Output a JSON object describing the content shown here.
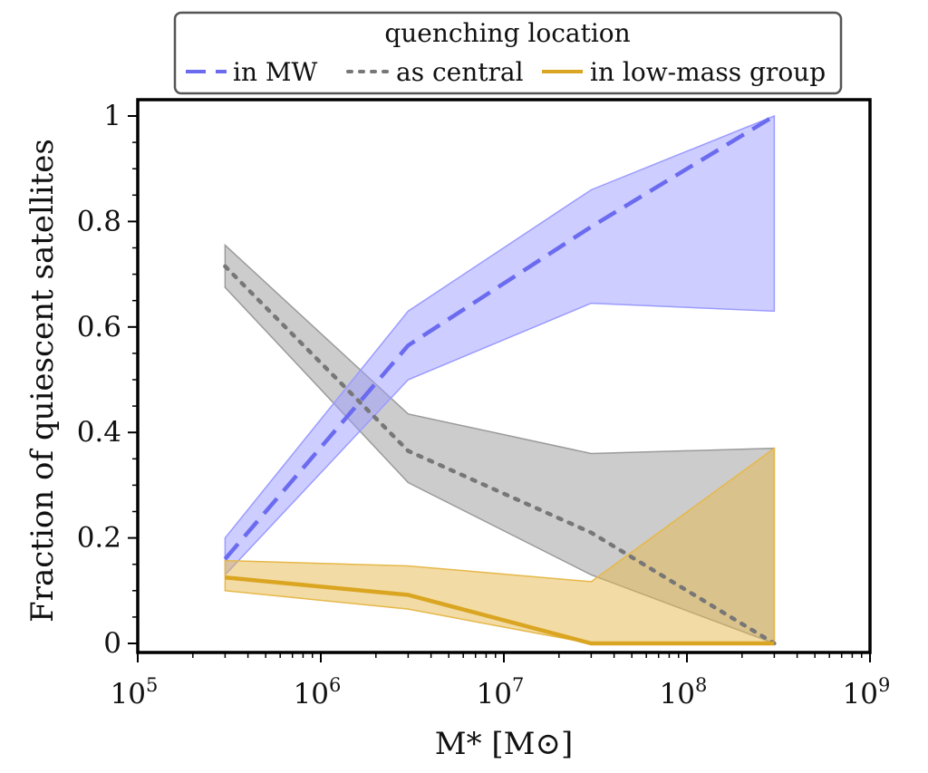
{
  "chart_data": {
    "type": "line",
    "x_scale": "log",
    "xlim": [
      100000,
      1000000000
    ],
    "ylim": [
      0,
      1
    ],
    "xlabel": "M* [M⊙]",
    "ylabel": "Fraction of quiescent satellites",
    "x_tick_labels": [
      {
        "base": "10",
        "exp": "5",
        "value": 100000
      },
      {
        "base": "10",
        "exp": "6",
        "value": 1000000
      },
      {
        "base": "10",
        "exp": "7",
        "value": 10000000
      },
      {
        "base": "10",
        "exp": "8",
        "value": 100000000
      },
      {
        "base": "10",
        "exp": "9",
        "value": 1000000000
      }
    ],
    "y_tick_labels": [
      "0",
      "0.2",
      "0.4",
      "0.6",
      "0.8",
      "1"
    ],
    "y_ticks": [
      0,
      0.2,
      0.4,
      0.6,
      0.8,
      1
    ],
    "legend": {
      "title": "quenching location",
      "placement": "top-center"
    },
    "x": [
      300000,
      3000000,
      30000000,
      300000000
    ],
    "series": [
      {
        "name": "in MW",
        "style": "dashed",
        "color": "#6b6bf0",
        "fill_color": "#9b9bff",
        "values": [
          0.16,
          0.565,
          0.79,
          1.0
        ],
        "lower": [
          0.13,
          0.5,
          0.645,
          0.63
        ],
        "upper": [
          0.2,
          0.63,
          0.86,
          1.0
        ]
      },
      {
        "name": "as central",
        "style": "dotted",
        "color": "#777777",
        "fill_color": "#9a9a9a",
        "values": [
          0.715,
          0.365,
          0.21,
          0.0
        ],
        "lower": [
          0.675,
          0.305,
          0.13,
          0.0
        ],
        "upper": [
          0.755,
          0.435,
          0.36,
          0.37
        ]
      },
      {
        "name": "in low-mass group",
        "style": "solid",
        "color": "#daa520",
        "fill_color": "#e6b84a",
        "values": [
          0.125,
          0.092,
          0.0,
          0.0
        ],
        "lower": [
          0.1,
          0.065,
          0.0,
          0.0
        ],
        "upper": [
          0.157,
          0.147,
          0.117,
          0.37
        ]
      }
    ]
  }
}
